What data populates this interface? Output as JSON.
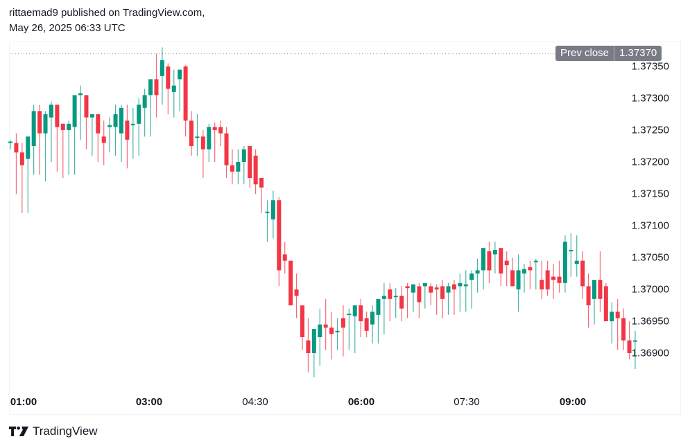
{
  "header": {
    "line1": "rittaemad9 published on TradingView.com,",
    "line2": "May 26, 2025 06:33 UTC"
  },
  "prev_close": {
    "label": "Prev close",
    "value": "1.37370"
  },
  "footer": {
    "brand": "TradingView",
    "logo_icon": "tradingview-logo-icon"
  },
  "colors": {
    "up": "#089981",
    "down": "#f23645",
    "grid_dotted": "#9598a1",
    "prev_close_bg": "#787b86",
    "text": "#131722"
  },
  "price_axis": {
    "ticks": [
      "1.37350",
      "1.37300",
      "1.37250",
      "1.37200",
      "1.37150",
      "1.37100",
      "1.37050",
      "1.37000",
      "1.36950",
      "1.36900"
    ]
  },
  "time_axis": {
    "ticks": [
      {
        "label": "01:00",
        "bold": true
      },
      {
        "label": "03:00",
        "bold": true
      },
      {
        "label": "04:30",
        "bold": false
      },
      {
        "label": "06:00",
        "bold": true
      },
      {
        "label": "07:30",
        "bold": false
      },
      {
        "label": "09:00",
        "bold": true
      }
    ]
  },
  "chart_data": {
    "type": "candlestick",
    "title": "",
    "xlabel": "",
    "ylabel": "",
    "interval_minutes": 5,
    "ylim": [
      1.3686,
      1.3738
    ],
    "prev_close": 1.3737,
    "x_ticks": [
      "01:00",
      "03:00",
      "04:30",
      "06:00",
      "07:30",
      "09:00"
    ],
    "y_ticks": [
      1.3735,
      1.373,
      1.3725,
      1.372,
      1.3715,
      1.371,
      1.3705,
      1.37,
      1.3695,
      1.369
    ],
    "grid": false,
    "legend": null,
    "candles": [
      {
        "o": 1.3723,
        "h": 1.37235,
        "l": 1.3722,
        "c": 1.37232
      },
      {
        "o": 1.3723,
        "h": 1.37245,
        "l": 1.3715,
        "c": 1.37215
      },
      {
        "o": 1.37215,
        "h": 1.3723,
        "l": 1.3712,
        "c": 1.37195
      },
      {
        "o": 1.37205,
        "h": 1.37235,
        "l": 1.3712,
        "c": 1.3724
      },
      {
        "o": 1.37225,
        "h": 1.3729,
        "l": 1.3718,
        "c": 1.3728
      },
      {
        "o": 1.3728,
        "h": 1.3729,
        "l": 1.3718,
        "c": 1.37245
      },
      {
        "o": 1.37245,
        "h": 1.3728,
        "l": 1.3717,
        "c": 1.37275
      },
      {
        "o": 1.3727,
        "h": 1.37295,
        "l": 1.372,
        "c": 1.3729
      },
      {
        "o": 1.3729,
        "h": 1.37265,
        "l": 1.37185,
        "c": 1.37255
      },
      {
        "o": 1.3726,
        "h": 1.3726,
        "l": 1.37175,
        "c": 1.3725
      },
      {
        "o": 1.3725,
        "h": 1.37265,
        "l": 1.3718,
        "c": 1.3726
      },
      {
        "o": 1.37255,
        "h": 1.37305,
        "l": 1.3718,
        "c": 1.37305
      },
      {
        "o": 1.37305,
        "h": 1.3732,
        "l": 1.37235,
        "c": 1.37308
      },
      {
        "o": 1.37305,
        "h": 1.373,
        "l": 1.3722,
        "c": 1.3727
      },
      {
        "o": 1.3727,
        "h": 1.37265,
        "l": 1.3721,
        "c": 1.37275
      },
      {
        "o": 1.37275,
        "h": 1.37265,
        "l": 1.372,
        "c": 1.37245
      },
      {
        "o": 1.3724,
        "h": 1.37265,
        "l": 1.37195,
        "c": 1.3723
      },
      {
        "o": 1.37255,
        "h": 1.3727,
        "l": 1.37215,
        "c": 1.37258
      },
      {
        "o": 1.37255,
        "h": 1.3729,
        "l": 1.3721,
        "c": 1.37275
      },
      {
        "o": 1.37245,
        "h": 1.3729,
        "l": 1.372,
        "c": 1.37285
      },
      {
        "o": 1.37265,
        "h": 1.3729,
        "l": 1.3719,
        "c": 1.37235
      },
      {
        "o": 1.3726,
        "h": 1.37285,
        "l": 1.37205,
        "c": 1.3726
      },
      {
        "o": 1.3726,
        "h": 1.373,
        "l": 1.3721,
        "c": 1.3729
      },
      {
        "o": 1.37285,
        "h": 1.37315,
        "l": 1.3724,
        "c": 1.37305
      },
      {
        "o": 1.37305,
        "h": 1.3733,
        "l": 1.3724,
        "c": 1.3733
      },
      {
        "o": 1.3733,
        "h": 1.3737,
        "l": 1.3727,
        "c": 1.37305
      },
      {
        "o": 1.37335,
        "h": 1.3738,
        "l": 1.3729,
        "c": 1.3736
      },
      {
        "o": 1.3735,
        "h": 1.37355,
        "l": 1.37275,
        "c": 1.37315
      },
      {
        "o": 1.3731,
        "h": 1.37345,
        "l": 1.3727,
        "c": 1.3732
      },
      {
        "o": 1.3733,
        "h": 1.37345,
        "l": 1.3728,
        "c": 1.37345
      },
      {
        "o": 1.3735,
        "h": 1.37352,
        "l": 1.3724,
        "c": 1.37265
      },
      {
        "o": 1.37265,
        "h": 1.3728,
        "l": 1.3721,
        "c": 1.37225
      },
      {
        "o": 1.3724,
        "h": 1.37275,
        "l": 1.3721,
        "c": 1.3724
      },
      {
        "o": 1.3724,
        "h": 1.3725,
        "l": 1.37175,
        "c": 1.3722
      },
      {
        "o": 1.3722,
        "h": 1.3726,
        "l": 1.372,
        "c": 1.37255
      },
      {
        "o": 1.37255,
        "h": 1.37262,
        "l": 1.372,
        "c": 1.3725
      },
      {
        "o": 1.37255,
        "h": 1.37265,
        "l": 1.37225,
        "c": 1.37245
      },
      {
        "o": 1.37245,
        "h": 1.37255,
        "l": 1.37175,
        "c": 1.37195
      },
      {
        "o": 1.37195,
        "h": 1.3722,
        "l": 1.37165,
        "c": 1.37185
      },
      {
        "o": 1.37185,
        "h": 1.3722,
        "l": 1.37165,
        "c": 1.372
      },
      {
        "o": 1.372,
        "h": 1.37225,
        "l": 1.37165,
        "c": 1.3722
      },
      {
        "o": 1.37225,
        "h": 1.37225,
        "l": 1.3716,
        "c": 1.37175
      },
      {
        "o": 1.3721,
        "h": 1.3722,
        "l": 1.3715,
        "c": 1.37165
      },
      {
        "o": 1.37175,
        "h": 1.3716,
        "l": 1.3712,
        "c": 1.3716
      },
      {
        "o": 1.3712,
        "h": 1.3714,
        "l": 1.37075,
        "c": 1.37122
      },
      {
        "o": 1.3711,
        "h": 1.37155,
        "l": 1.3708,
        "c": 1.3714
      },
      {
        "o": 1.3714,
        "h": 1.37145,
        "l": 1.37005,
        "c": 1.3703
      },
      {
        "o": 1.37055,
        "h": 1.37075,
        "l": 1.37025,
        "c": 1.37045
      },
      {
        "o": 1.37045,
        "h": 1.37045,
        "l": 1.36975,
        "c": 1.36975
      },
      {
        "o": 1.37,
        "h": 1.37025,
        "l": 1.36955,
        "c": 1.3699
      },
      {
        "o": 1.36975,
        "h": 1.36975,
        "l": 1.36905,
        "c": 1.36925
      },
      {
        "o": 1.3692,
        "h": 1.36955,
        "l": 1.3687,
        "c": 1.369
      },
      {
        "o": 1.369,
        "h": 1.36935,
        "l": 1.36862,
        "c": 1.36938
      },
      {
        "o": 1.36925,
        "h": 1.3697,
        "l": 1.3688,
        "c": 1.36945
      },
      {
        "o": 1.36945,
        "h": 1.36985,
        "l": 1.36905,
        "c": 1.3694
      },
      {
        "o": 1.3694,
        "h": 1.36965,
        "l": 1.3689,
        "c": 1.3693
      },
      {
        "o": 1.36935,
        "h": 1.36955,
        "l": 1.36905,
        "c": 1.36935
      },
      {
        "o": 1.36955,
        "h": 1.36975,
        "l": 1.36895,
        "c": 1.3694
      },
      {
        "o": 1.3696,
        "h": 1.3697,
        "l": 1.36905,
        "c": 1.36962
      },
      {
        "o": 1.36958,
        "h": 1.36975,
        "l": 1.369,
        "c": 1.36975
      },
      {
        "o": 1.36975,
        "h": 1.36985,
        "l": 1.36925,
        "c": 1.3695
      },
      {
        "o": 1.36955,
        "h": 1.36965,
        "l": 1.36925,
        "c": 1.36935
      },
      {
        "o": 1.36945,
        "h": 1.36975,
        "l": 1.36915,
        "c": 1.36965
      },
      {
        "o": 1.3696,
        "h": 1.36985,
        "l": 1.36915,
        "c": 1.36985
      },
      {
        "o": 1.36985,
        "h": 1.3701,
        "l": 1.3693,
        "c": 1.3699
      },
      {
        "o": 1.37,
        "h": 1.3701,
        "l": 1.3695,
        "c": 1.36985
      },
      {
        "o": 1.3699,
        "h": 1.37002,
        "l": 1.36955,
        "c": 1.3699
      },
      {
        "o": 1.3699,
        "h": 1.37005,
        "l": 1.3695,
        "c": 1.3697
      },
      {
        "o": 1.37005,
        "h": 1.3701,
        "l": 1.36955,
        "c": 1.37002
      },
      {
        "o": 1.36995,
        "h": 1.37005,
        "l": 1.36965,
        "c": 1.37008
      },
      {
        "o": 1.37005,
        "h": 1.3701,
        "l": 1.36955,
        "c": 1.3698
      },
      {
        "o": 1.37005,
        "h": 1.3701,
        "l": 1.3697,
        "c": 1.3701
      },
      {
        "o": 1.37005,
        "h": 1.3701,
        "l": 1.36975,
        "c": 1.36995
      },
      {
        "o": 1.37003,
        "h": 1.37008,
        "l": 1.3696,
        "c": 1.37
      },
      {
        "o": 1.37005,
        "h": 1.37015,
        "l": 1.36955,
        "c": 1.36985
      },
      {
        "o": 1.36995,
        "h": 1.3701,
        "l": 1.3696,
        "c": 1.37005
      },
      {
        "o": 1.37008,
        "h": 1.37015,
        "l": 1.3696,
        "c": 1.37
      },
      {
        "o": 1.37005,
        "h": 1.37025,
        "l": 1.36965,
        "c": 1.3701
      },
      {
        "o": 1.37005,
        "h": 1.3703,
        "l": 1.36965,
        "c": 1.37008
      },
      {
        "o": 1.37015,
        "h": 1.3703,
        "l": 1.3697,
        "c": 1.37025
      },
      {
        "o": 1.37025,
        "h": 1.37048,
        "l": 1.36995,
        "c": 1.3703
      },
      {
        "o": 1.3703,
        "h": 1.37065,
        "l": 1.37,
        "c": 1.37065
      },
      {
        "o": 1.3706,
        "h": 1.37075,
        "l": 1.3701,
        "c": 1.3703
      },
      {
        "o": 1.37055,
        "h": 1.37075,
        "l": 1.37025,
        "c": 1.37062
      },
      {
        "o": 1.37065,
        "h": 1.37065,
        "l": 1.37005,
        "c": 1.37025
      },
      {
        "o": 1.37045,
        "h": 1.3706,
        "l": 1.37005,
        "c": 1.37038
      },
      {
        "o": 1.3703,
        "h": 1.3705,
        "l": 1.37005,
        "c": 1.37005
      },
      {
        "o": 1.37,
        "h": 1.37055,
        "l": 1.36965,
        "c": 1.3703
      },
      {
        "o": 1.37025,
        "h": 1.3704,
        "l": 1.36995,
        "c": 1.37032
      },
      {
        "o": 1.37035,
        "h": 1.37045,
        "l": 1.37,
        "c": 1.3703
      },
      {
        "o": 1.37045,
        "h": 1.37048,
        "l": 1.37,
        "c": 1.37045
      },
      {
        "o": 1.37015,
        "h": 1.37045,
        "l": 1.36985,
        "c": 1.37
      },
      {
        "o": 1.3703,
        "h": 1.37045,
        "l": 1.3699,
        "c": 1.37
      },
      {
        "o": 1.3702,
        "h": 1.3704,
        "l": 1.36985,
        "c": 1.37015
      },
      {
        "o": 1.3702,
        "h": 1.37045,
        "l": 1.36995,
        "c": 1.3701
      },
      {
        "o": 1.3701,
        "h": 1.37085,
        "l": 1.36995,
        "c": 1.37075
      },
      {
        "o": 1.3706,
        "h": 1.37088,
        "l": 1.3702,
        "c": 1.37062
      },
      {
        "o": 1.3704,
        "h": 1.37085,
        "l": 1.3702,
        "c": 1.37045
      },
      {
        "o": 1.37045,
        "h": 1.3706,
        "l": 1.36985,
        "c": 1.37005
      },
      {
        "o": 1.37005,
        "h": 1.37025,
        "l": 1.3694,
        "c": 1.36975
      },
      {
        "o": 1.36985,
        "h": 1.37005,
        "l": 1.36945,
        "c": 1.37015
      },
      {
        "o": 1.37015,
        "h": 1.3706,
        "l": 1.36965,
        "c": 1.36985
      },
      {
        "o": 1.37005,
        "h": 1.3701,
        "l": 1.3695,
        "c": 1.3695
      },
      {
        "o": 1.3695,
        "h": 1.3698,
        "l": 1.36915,
        "c": 1.36965
      },
      {
        "o": 1.36965,
        "h": 1.36985,
        "l": 1.36905,
        "c": 1.36955
      },
      {
        "o": 1.36955,
        "h": 1.3697,
        "l": 1.36905,
        "c": 1.3692
      },
      {
        "o": 1.3692,
        "h": 1.3695,
        "l": 1.3689,
        "c": 1.369
      },
      {
        "o": 1.3692,
        "h": 1.36935,
        "l": 1.36875,
        "c": 1.3692
      }
    ]
  }
}
